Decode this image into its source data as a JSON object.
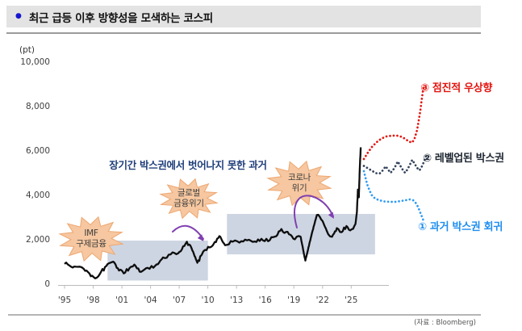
{
  "header": {
    "bullet": "●",
    "bullet_color": "#1616d0",
    "title": "최근 급등 이후 방향성을 모색하는 코스피"
  },
  "axis": {
    "unit": "(pt)",
    "y_ticks": [
      "10,000",
      "8,000",
      "6,000",
      "4,000",
      "2,000",
      "0"
    ],
    "x_ticks": [
      "'95",
      "'98",
      "'01",
      "'04",
      "'07",
      "'10",
      "'13",
      "'16",
      "'19",
      "'22",
      "'25"
    ]
  },
  "annotations": {
    "box_note": "장기간 박스권에서 벗어나지 못한 과거",
    "bursts": [
      {
        "name": "imf-crisis",
        "label": "IMF\n구제금융"
      },
      {
        "name": "global-financial-crisis",
        "label": "글로벌\n금융위기"
      },
      {
        "name": "covid-crisis",
        "label": "코로나\n위기"
      }
    ]
  },
  "source": "(자료 : Bloomberg)",
  "colors": {
    "line": "#0d0d0d",
    "box_fill": "#cdd5e2",
    "burst_fill": "#f6c7a0",
    "burst_stroke": "#eda771",
    "arrow": "#8040b0",
    "axis": "#bbbbbb"
  },
  "chart_data": {
    "type": "line",
    "title": "최근 급등 이후 방향성을 모색하는 코스피",
    "ylabel": "(pt)",
    "ylim": [
      0,
      10000
    ],
    "x_range": [
      1995,
      2029
    ],
    "grid": false,
    "series": [
      {
        "name": "KOSPI",
        "points": [
          [
            1995.0,
            950
          ],
          [
            1995.5,
            880
          ],
          [
            1996.2,
            820
          ],
          [
            1997.0,
            730
          ],
          [
            1997.6,
            520
          ],
          [
            1998.2,
            300
          ],
          [
            1998.7,
            500
          ],
          [
            1999.5,
            940
          ],
          [
            2000.1,
            1050
          ],
          [
            2000.7,
            650
          ],
          [
            2001.2,
            520
          ],
          [
            2001.8,
            760
          ],
          [
            2002.3,
            920
          ],
          [
            2003.0,
            590
          ],
          [
            2003.7,
            770
          ],
          [
            2004.5,
            870
          ],
          [
            2005.3,
            1240
          ],
          [
            2006.1,
            1380
          ],
          [
            2006.9,
            1430
          ],
          [
            2007.8,
            1950
          ],
          [
            2008.3,
            1650
          ],
          [
            2008.9,
            1000
          ],
          [
            2009.7,
            1580
          ],
          [
            2010.5,
            1780
          ],
          [
            2011.2,
            2200
          ],
          [
            2011.8,
            1790
          ],
          [
            2012.6,
            1950
          ],
          [
            2013.3,
            1910
          ],
          [
            2014.1,
            2010
          ],
          [
            2014.9,
            1960
          ],
          [
            2015.6,
            2080
          ],
          [
            2016.3,
            1970
          ],
          [
            2017.0,
            2180
          ],
          [
            2017.7,
            2520
          ],
          [
            2018.5,
            2280
          ],
          [
            2019.1,
            2060
          ],
          [
            2019.7,
            2180
          ],
          [
            2020.2,
            1100
          ],
          [
            2020.9,
            2350
          ],
          [
            2021.4,
            3150
          ],
          [
            2022.0,
            2880
          ],
          [
            2022.6,
            2280
          ],
          [
            2023.0,
            2170
          ],
          [
            2023.5,
            2560
          ],
          [
            2024.0,
            2380
          ],
          [
            2024.5,
            2660
          ],
          [
            2024.9,
            2460
          ],
          [
            2025.2,
            2530
          ],
          [
            2025.45,
            2750
          ],
          [
            2025.6,
            3300
          ],
          [
            2025.7,
            4300
          ],
          [
            2025.8,
            3950
          ],
          [
            2025.9,
            5300
          ],
          [
            2026.0,
            6200
          ]
        ]
      }
    ],
    "boxes": [
      {
        "name": "past-box-range",
        "x_range": [
          1999.5,
          2010.0
        ],
        "y_range": [
          200,
          2000
        ]
      },
      {
        "name": "current-box-range",
        "x_range": [
          2012.0,
          2027.5
        ],
        "y_range": [
          1380,
          3200
        ]
      }
    ],
    "scenarios": [
      {
        "label": "③ 점진적 우상향",
        "color": "#e3150f",
        "approx_points": [
          [
            2026.1,
            5700
          ],
          [
            2027.0,
            6600
          ],
          [
            2027.8,
            6700
          ],
          [
            2028.2,
            6450
          ],
          [
            2028.7,
            7400
          ],
          [
            2029.2,
            9000
          ]
        ]
      },
      {
        "label": "② 레벨업된 박스권",
        "color": "#1c2430",
        "line_color": "#33435c",
        "approx_points": [
          [
            2026.1,
            5350
          ],
          [
            2026.6,
            5050
          ],
          [
            2027.0,
            5450
          ],
          [
            2027.5,
            5050
          ],
          [
            2028.0,
            5500
          ],
          [
            2028.5,
            5100
          ],
          [
            2029.0,
            5800
          ]
        ]
      },
      {
        "label": "① 과거 박스권 회귀",
        "color": "#1d8df0",
        "line_color": "#2e9bf5",
        "approx_points": [
          [
            2026.1,
            5100
          ],
          [
            2026.5,
            3900
          ],
          [
            2027.2,
            3750
          ],
          [
            2028.0,
            3800
          ],
          [
            2028.6,
            3500
          ],
          [
            2029.0,
            2850
          ]
        ]
      }
    ]
  }
}
